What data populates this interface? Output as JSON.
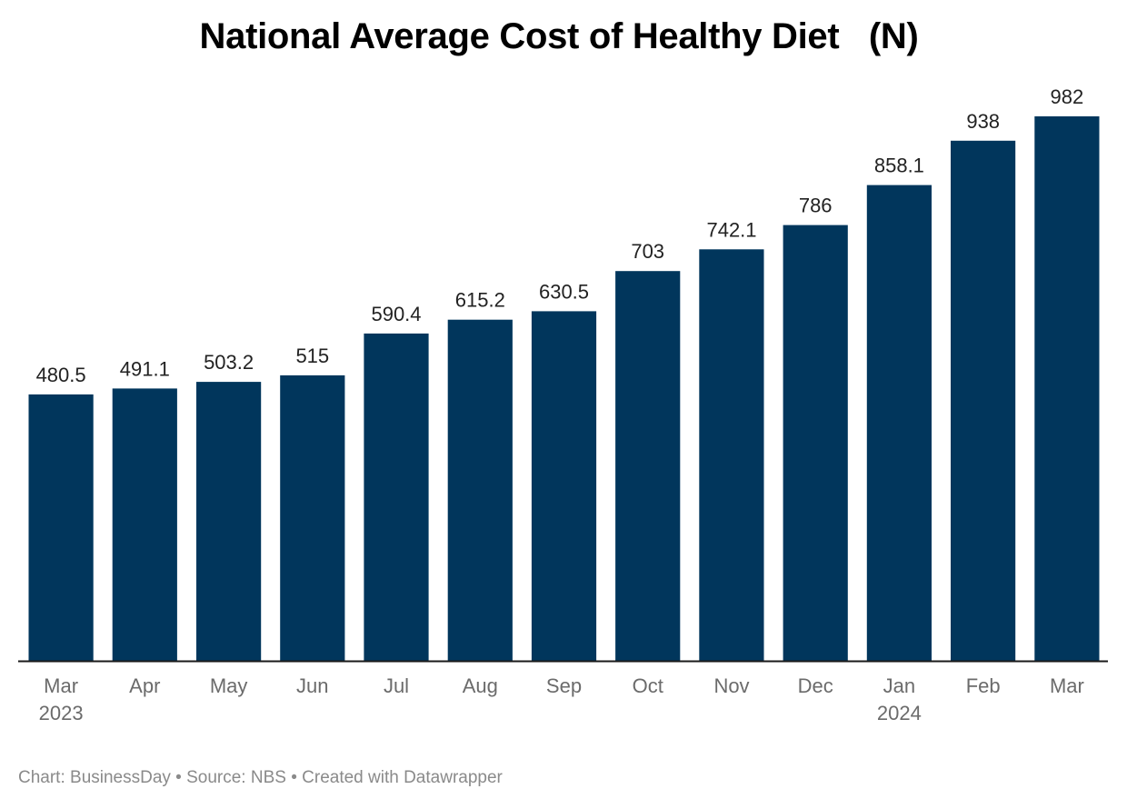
{
  "chart_data": {
    "type": "bar",
    "title": "National Average Cost of Healthy Diet   (N)",
    "xlabel": "",
    "ylabel": "",
    "ylim": [
      0,
      982
    ],
    "grid": false,
    "categories": [
      "Mar",
      "Apr",
      "May",
      "Jun",
      "Jul",
      "Aug",
      "Sep",
      "Oct",
      "Nov",
      "Dec",
      "Jan",
      "Feb",
      "Mar"
    ],
    "category_sublabels": [
      "2023",
      "",
      "",
      "",
      "",
      "",
      "",
      "",
      "",
      "",
      "2024",
      "",
      ""
    ],
    "values": [
      480.5,
      491.1,
      503.2,
      515,
      590.4,
      615.2,
      630.5,
      703,
      742.1,
      786,
      858.1,
      938,
      982
    ],
    "value_labels": [
      "480.5",
      "491.1",
      "503.2",
      "515",
      "590.4",
      "615.2",
      "630.5",
      "703",
      "742.1",
      "786",
      "858.1",
      "938",
      "982"
    ],
    "bar_color": "#01365c",
    "baseline_color": "#1a1a1a"
  },
  "footer": "Chart: BusinessDay • Source: NBS • Created with Datawrapper"
}
